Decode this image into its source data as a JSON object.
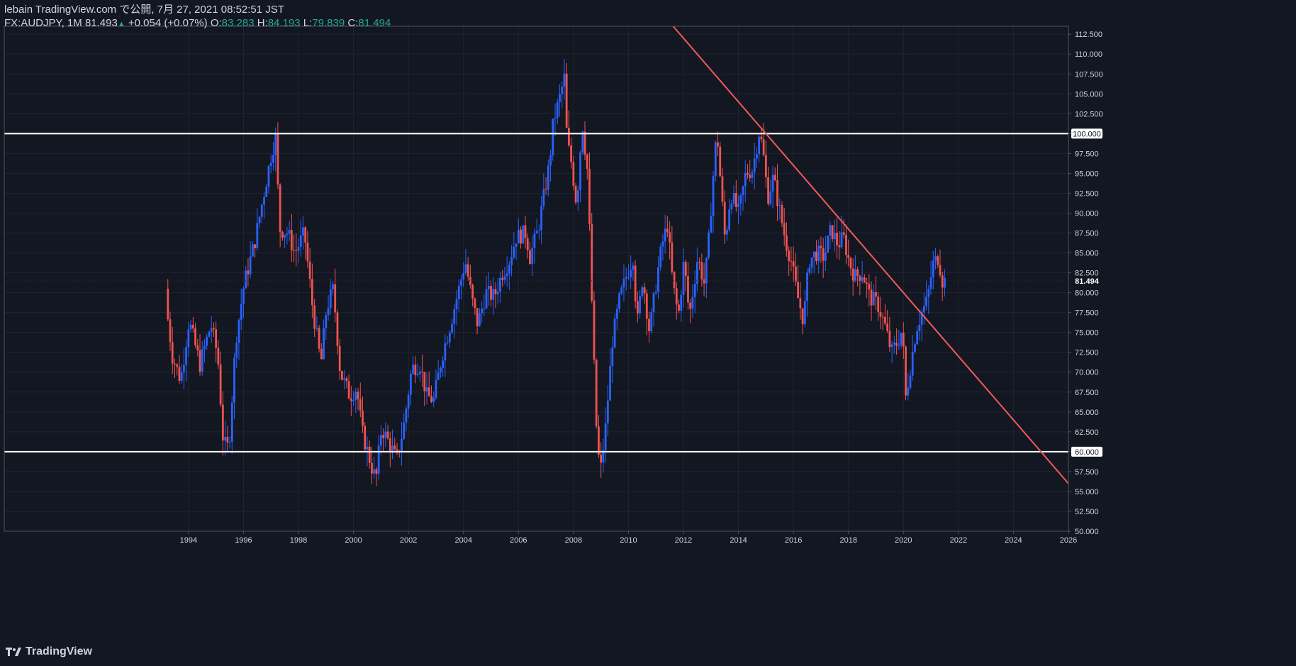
{
  "header": {
    "publish_line": "lebain TradingView.com で公開, 7月 27, 2021 08:52:51 JST",
    "symbol": "FX:AUDJPY, 1M",
    "last": "81.493",
    "change_arrow": "▲",
    "change": "+0.054 (+0.07%)",
    "o_label": "O:",
    "o_value": "83.283",
    "h_label": "H:",
    "h_value": "84.193",
    "l_label": "L:",
    "l_value": "79.839",
    "c_label": "C:",
    "c_value": "81.494"
  },
  "brand": {
    "name": "TradingView",
    "icon": "tradingview-logo-icon"
  },
  "colors": {
    "background": "#131722",
    "up": "#2962ff",
    "down": "#ef5350",
    "grid": "#1f2430",
    "axis_text": "#d1d4dc",
    "hline": "#ffffff",
    "trendline": "#f05a5a"
  },
  "chart_data": {
    "type": "candlestick",
    "timeframe": "1M",
    "ylim": [
      50,
      113.5
    ],
    "xlim": [
      1987.3,
      2026.0
    ],
    "y_ticks": [
      "112.500",
      "110.000",
      "107.500",
      "105.000",
      "102.500",
      "100.000",
      "97.500",
      "95.000",
      "92.500",
      "90.000",
      "87.500",
      "85.000",
      "82.500",
      "80.000",
      "77.500",
      "75.000",
      "72.500",
      "70.000",
      "67.500",
      "65.000",
      "62.500",
      "60.000",
      "57.500",
      "55.000",
      "52.500",
      "50.000"
    ],
    "x_ticks": [
      "1994",
      "1996",
      "1998",
      "2000",
      "2002",
      "2004",
      "2006",
      "2008",
      "2010",
      "2012",
      "2014",
      "2016",
      "2018",
      "2020",
      "2022",
      "2024",
      "2026"
    ],
    "horizontal_lines": [
      {
        "value": 100.0,
        "label": "100.000"
      },
      {
        "value": 60.0,
        "label": "60.000"
      }
    ],
    "current_price": {
      "value": 81.494,
      "label": "81.494"
    },
    "trendline": {
      "start": [
        2011.5,
        114.0
      ],
      "end": [
        2026.0,
        56.0
      ]
    },
    "price_path": [
      [
        1993.25,
        79.0
      ],
      [
        1993.5,
        72.0
      ],
      [
        1993.8,
        69.0
      ],
      [
        1994.1,
        76.5
      ],
      [
        1994.5,
        71.0
      ],
      [
        1994.9,
        76.0
      ],
      [
        1995.15,
        72.0
      ],
      [
        1995.35,
        61.0
      ],
      [
        1995.55,
        60.5
      ],
      [
        1995.8,
        74.0
      ],
      [
        1996.1,
        81.0
      ],
      [
        1996.5,
        86.5
      ],
      [
        1996.8,
        92.0
      ],
      [
        1997.1,
        97.5
      ],
      [
        1997.25,
        99.5
      ],
      [
        1997.4,
        88.0
      ],
      [
        1997.7,
        87.5
      ],
      [
        1997.95,
        85.0
      ],
      [
        1998.3,
        87.5
      ],
      [
        1998.6,
        78.0
      ],
      [
        1998.9,
        71.0
      ],
      [
        1999.1,
        78.0
      ],
      [
        1999.35,
        80.5
      ],
      [
        1999.6,
        70.0
      ],
      [
        1999.95,
        67.0
      ],
      [
        2000.2,
        68.0
      ],
      [
        2000.4,
        62.5
      ],
      [
        2000.75,
        58.0
      ],
      [
        2000.9,
        56.5
      ],
      [
        2001.1,
        63.0
      ],
      [
        2001.4,
        61.0
      ],
      [
        2001.65,
        59.0
      ],
      [
        2001.9,
        63.0
      ],
      [
        2002.2,
        70.5
      ],
      [
        2002.5,
        71.0
      ],
      [
        2002.75,
        67.0
      ],
      [
        2003.0,
        66.5
      ],
      [
        2003.3,
        72.0
      ],
      [
        2003.6,
        76.0
      ],
      [
        2003.85,
        79.5
      ],
      [
        2004.15,
        84.0
      ],
      [
        2004.4,
        79.0
      ],
      [
        2004.6,
        76.0
      ],
      [
        2004.9,
        80.0
      ],
      [
        2005.2,
        79.5
      ],
      [
        2005.5,
        82.5
      ],
      [
        2005.75,
        84.0
      ],
      [
        2006.0,
        87.0
      ],
      [
        2006.35,
        87.5
      ],
      [
        2006.5,
        84.5
      ],
      [
        2006.8,
        88.0
      ],
      [
        2007.0,
        92.0
      ],
      [
        2007.2,
        96.0
      ],
      [
        2007.35,
        101.5
      ],
      [
        2007.55,
        104.0
      ],
      [
        2007.75,
        107.0
      ],
      [
        2007.85,
        99.0
      ],
      [
        2008.0,
        96.5
      ],
      [
        2008.2,
        91.0
      ],
      [
        2008.4,
        101.5
      ],
      [
        2008.6,
        95.0
      ],
      [
        2008.75,
        79.0
      ],
      [
        2008.9,
        64.0
      ],
      [
        2009.05,
        57.0
      ],
      [
        2009.25,
        63.0
      ],
      [
        2009.5,
        74.0
      ],
      [
        2009.75,
        79.0
      ],
      [
        2010.0,
        82.0
      ],
      [
        2010.25,
        84.5
      ],
      [
        2010.4,
        76.0
      ],
      [
        2010.6,
        82.0
      ],
      [
        2010.85,
        75.0
      ],
      [
        2011.1,
        81.5
      ],
      [
        2011.3,
        86.0
      ],
      [
        2011.5,
        88.5
      ],
      [
        2011.7,
        81.0
      ],
      [
        2011.9,
        77.0
      ],
      [
        2012.1,
        84.0
      ],
      [
        2012.3,
        77.0
      ],
      [
        2012.6,
        84.5
      ],
      [
        2012.85,
        81.0
      ],
      [
        2013.0,
        86.5
      ],
      [
        2013.15,
        94.0
      ],
      [
        2013.3,
        100.5
      ],
      [
        2013.45,
        93.0
      ],
      [
        2013.6,
        86.5
      ],
      [
        2013.8,
        92.5
      ],
      [
        2014.1,
        90.0
      ],
      [
        2014.35,
        95.0
      ],
      [
        2014.6,
        95.5
      ],
      [
        2014.85,
        100.5
      ],
      [
        2015.0,
        97.0
      ],
      [
        2015.15,
        92.0
      ],
      [
        2015.35,
        94.5
      ],
      [
        2015.6,
        90.0
      ],
      [
        2015.8,
        86.5
      ],
      [
        2016.0,
        84.0
      ],
      [
        2016.2,
        80.0
      ],
      [
        2016.45,
        76.5
      ],
      [
        2016.65,
        84.0
      ],
      [
        2016.9,
        85.0
      ],
      [
        2017.2,
        84.5
      ],
      [
        2017.45,
        88.0
      ],
      [
        2017.7,
        86.0
      ],
      [
        2017.9,
        87.0
      ],
      [
        2018.1,
        84.0
      ],
      [
        2018.3,
        82.0
      ],
      [
        2018.6,
        82.5
      ],
      [
        2018.85,
        79.5
      ],
      [
        2019.15,
        78.5
      ],
      [
        2019.4,
        76.0
      ],
      [
        2019.65,
        72.5
      ],
      [
        2019.9,
        74.0
      ],
      [
        2020.05,
        75.5
      ],
      [
        2020.15,
        66.5
      ],
      [
        2020.35,
        71.0
      ],
      [
        2020.55,
        75.5
      ],
      [
        2020.75,
        77.5
      ],
      [
        2020.95,
        79.0
      ],
      [
        2021.15,
        83.5
      ],
      [
        2021.35,
        84.5
      ],
      [
        2021.5,
        81.5
      ]
    ]
  }
}
